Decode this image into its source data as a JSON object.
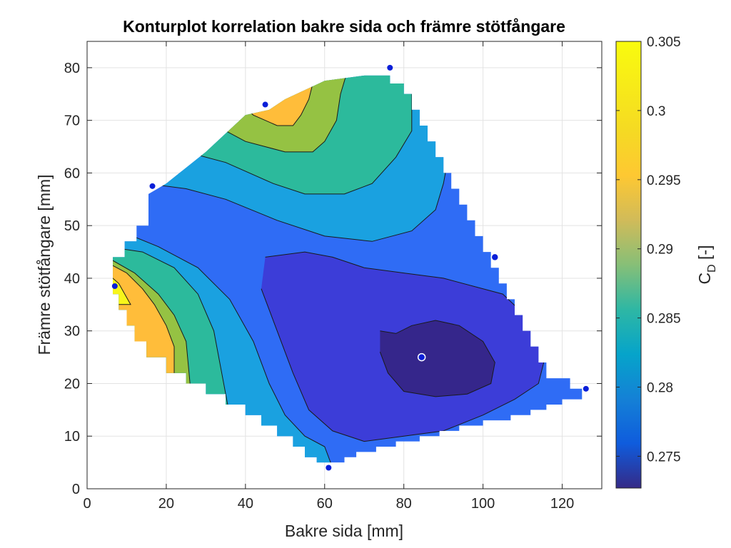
{
  "chart_data": {
    "type": "contour",
    "title": "Konturplot korrelation bakre sida och främre stötfångare",
    "xlabel": "Bakre sida [mm]",
    "ylabel": "Främre stötfångare [mm]",
    "xlim": [
      0,
      130
    ],
    "ylim": [
      0,
      85
    ],
    "xticks": [
      0,
      20,
      40,
      60,
      80,
      100,
      120
    ],
    "xtick_labels": [
      "0",
      "20",
      "40",
      "60",
      "80",
      "100",
      "120"
    ],
    "yticks": [
      0,
      10,
      20,
      30,
      40,
      50,
      60,
      70,
      80
    ],
    "ytick_labels": [
      "0",
      "10",
      "20",
      "30",
      "40",
      "50",
      "60",
      "70",
      "80"
    ],
    "grid": true,
    "colorbar": {
      "label": "C",
      "label_subscript": "D",
      "label_suffix": " [-]",
      "range": [
        0.2727,
        0.305
      ],
      "ticks": [
        0.275,
        0.28,
        0.285,
        0.29,
        0.295,
        0.3,
        0.305
      ],
      "tick_labels": [
        "0.275",
        "0.28",
        "0.285",
        "0.29",
        "0.295",
        "0.3",
        "0.305"
      ],
      "colormap": "parula"
    },
    "contour_levels": [
      0.275,
      0.28,
      0.285,
      0.29,
      0.295,
      0.3
    ],
    "sample_points": [
      {
        "x": 7,
        "y": 38.5
      },
      {
        "x": 16.5,
        "y": 57.5
      },
      {
        "x": 45,
        "y": 73
      },
      {
        "x": 76.5,
        "y": 80
      },
      {
        "x": 103,
        "y": 44,
        "highlight": true
      },
      {
        "x": 126,
        "y": 19
      },
      {
        "x": 61,
        "y": 4
      },
      {
        "x": 84.5,
        "y": 25,
        "highlight": true
      }
    ],
    "colors": {
      "band_0": "#35268b",
      "band_1": "#3c3dd8",
      "band_2": "#2f6cf5",
      "band_3": "#1aa1e0",
      "band_4": "#2cba9c",
      "band_5": "#95c243",
      "band_6": "#ffbd3a",
      "band_7": "#f7f51a",
      "point": "#0a1fd8"
    }
  }
}
